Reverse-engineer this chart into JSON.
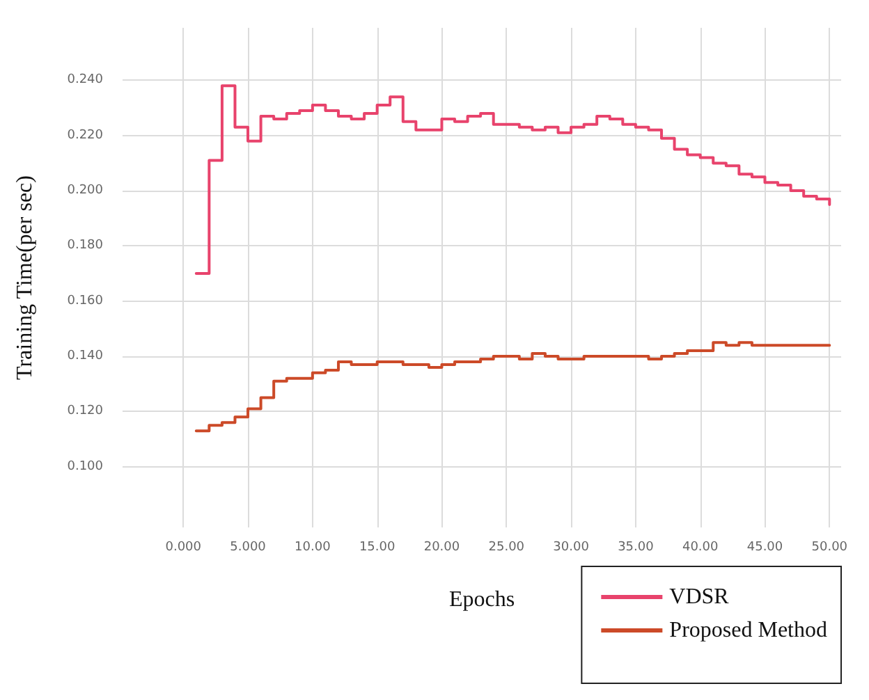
{
  "chart_data": {
    "type": "step",
    "xlabel": "Epochs",
    "ylabel": "Training Time(per sec)",
    "x": [
      1,
      2,
      3,
      4,
      5,
      6,
      7,
      8,
      9,
      10,
      11,
      12,
      13,
      14,
      15,
      16,
      17,
      18,
      19,
      20,
      21,
      22,
      23,
      24,
      25,
      26,
      27,
      28,
      29,
      30,
      31,
      32,
      33,
      34,
      35,
      36,
      37,
      38,
      39,
      40,
      41,
      42,
      43,
      44,
      45,
      46,
      47,
      48,
      49,
      50
    ],
    "series": [
      {
        "name": "VDSR",
        "color": "#e8436c",
        "values": [
          0.17,
          0.211,
          0.238,
          0.223,
          0.218,
          0.227,
          0.226,
          0.228,
          0.229,
          0.231,
          0.229,
          0.227,
          0.226,
          0.228,
          0.231,
          0.234,
          0.225,
          0.222,
          0.222,
          0.226,
          0.225,
          0.227,
          0.228,
          0.224,
          0.224,
          0.223,
          0.222,
          0.223,
          0.221,
          0.223,
          0.224,
          0.227,
          0.226,
          0.224,
          0.223,
          0.222,
          0.219,
          0.215,
          0.213,
          0.212,
          0.21,
          0.209,
          0.206,
          0.205,
          0.203,
          0.202,
          0.2,
          0.198,
          0.197,
          0.195
        ]
      },
      {
        "name": "Proposed Method",
        "color": "#cc4a28",
        "values": [
          0.113,
          0.115,
          0.116,
          0.118,
          0.121,
          0.125,
          0.131,
          0.132,
          0.132,
          0.134,
          0.135,
          0.138,
          0.137,
          0.137,
          0.138,
          0.138,
          0.137,
          0.137,
          0.136,
          0.137,
          0.138,
          0.138,
          0.139,
          0.14,
          0.14,
          0.139,
          0.141,
          0.14,
          0.139,
          0.139,
          0.14,
          0.14,
          0.14,
          0.14,
          0.14,
          0.139,
          0.14,
          0.141,
          0.142,
          0.142,
          0.145,
          0.144,
          0.145,
          0.144,
          0.144,
          0.144,
          0.144,
          0.144,
          0.144,
          0.144
        ]
      }
    ],
    "xlim": [
      -4.7,
      50.9
    ],
    "ylim": [
      0.078,
      0.259
    ],
    "xticks": [
      {
        "value": 0,
        "label": "0.000"
      },
      {
        "value": 5,
        "label": "5.000"
      },
      {
        "value": 10,
        "label": "10.00"
      },
      {
        "value": 15,
        "label": "15.00"
      },
      {
        "value": 20,
        "label": "20.00"
      },
      {
        "value": 25,
        "label": "25.00"
      },
      {
        "value": 30,
        "label": "30.00"
      },
      {
        "value": 35,
        "label": "35.00"
      },
      {
        "value": 40,
        "label": "40.00"
      },
      {
        "value": 45,
        "label": "45.00"
      },
      {
        "value": 50,
        "label": "50.00"
      }
    ],
    "yticks": [
      {
        "value": 0.1,
        "label": "0.100"
      },
      {
        "value": 0.12,
        "label": "0.120"
      },
      {
        "value": 0.14,
        "label": "0.140"
      },
      {
        "value": 0.16,
        "label": "0.160"
      },
      {
        "value": 0.18,
        "label": "0.180"
      },
      {
        "value": 0.2,
        "label": "0.200"
      },
      {
        "value": 0.22,
        "label": "0.220"
      },
      {
        "value": 0.24,
        "label": "0.240"
      }
    ],
    "grid": true,
    "legend": "bottom right",
    "marker": "none",
    "line_style": "solid"
  }
}
